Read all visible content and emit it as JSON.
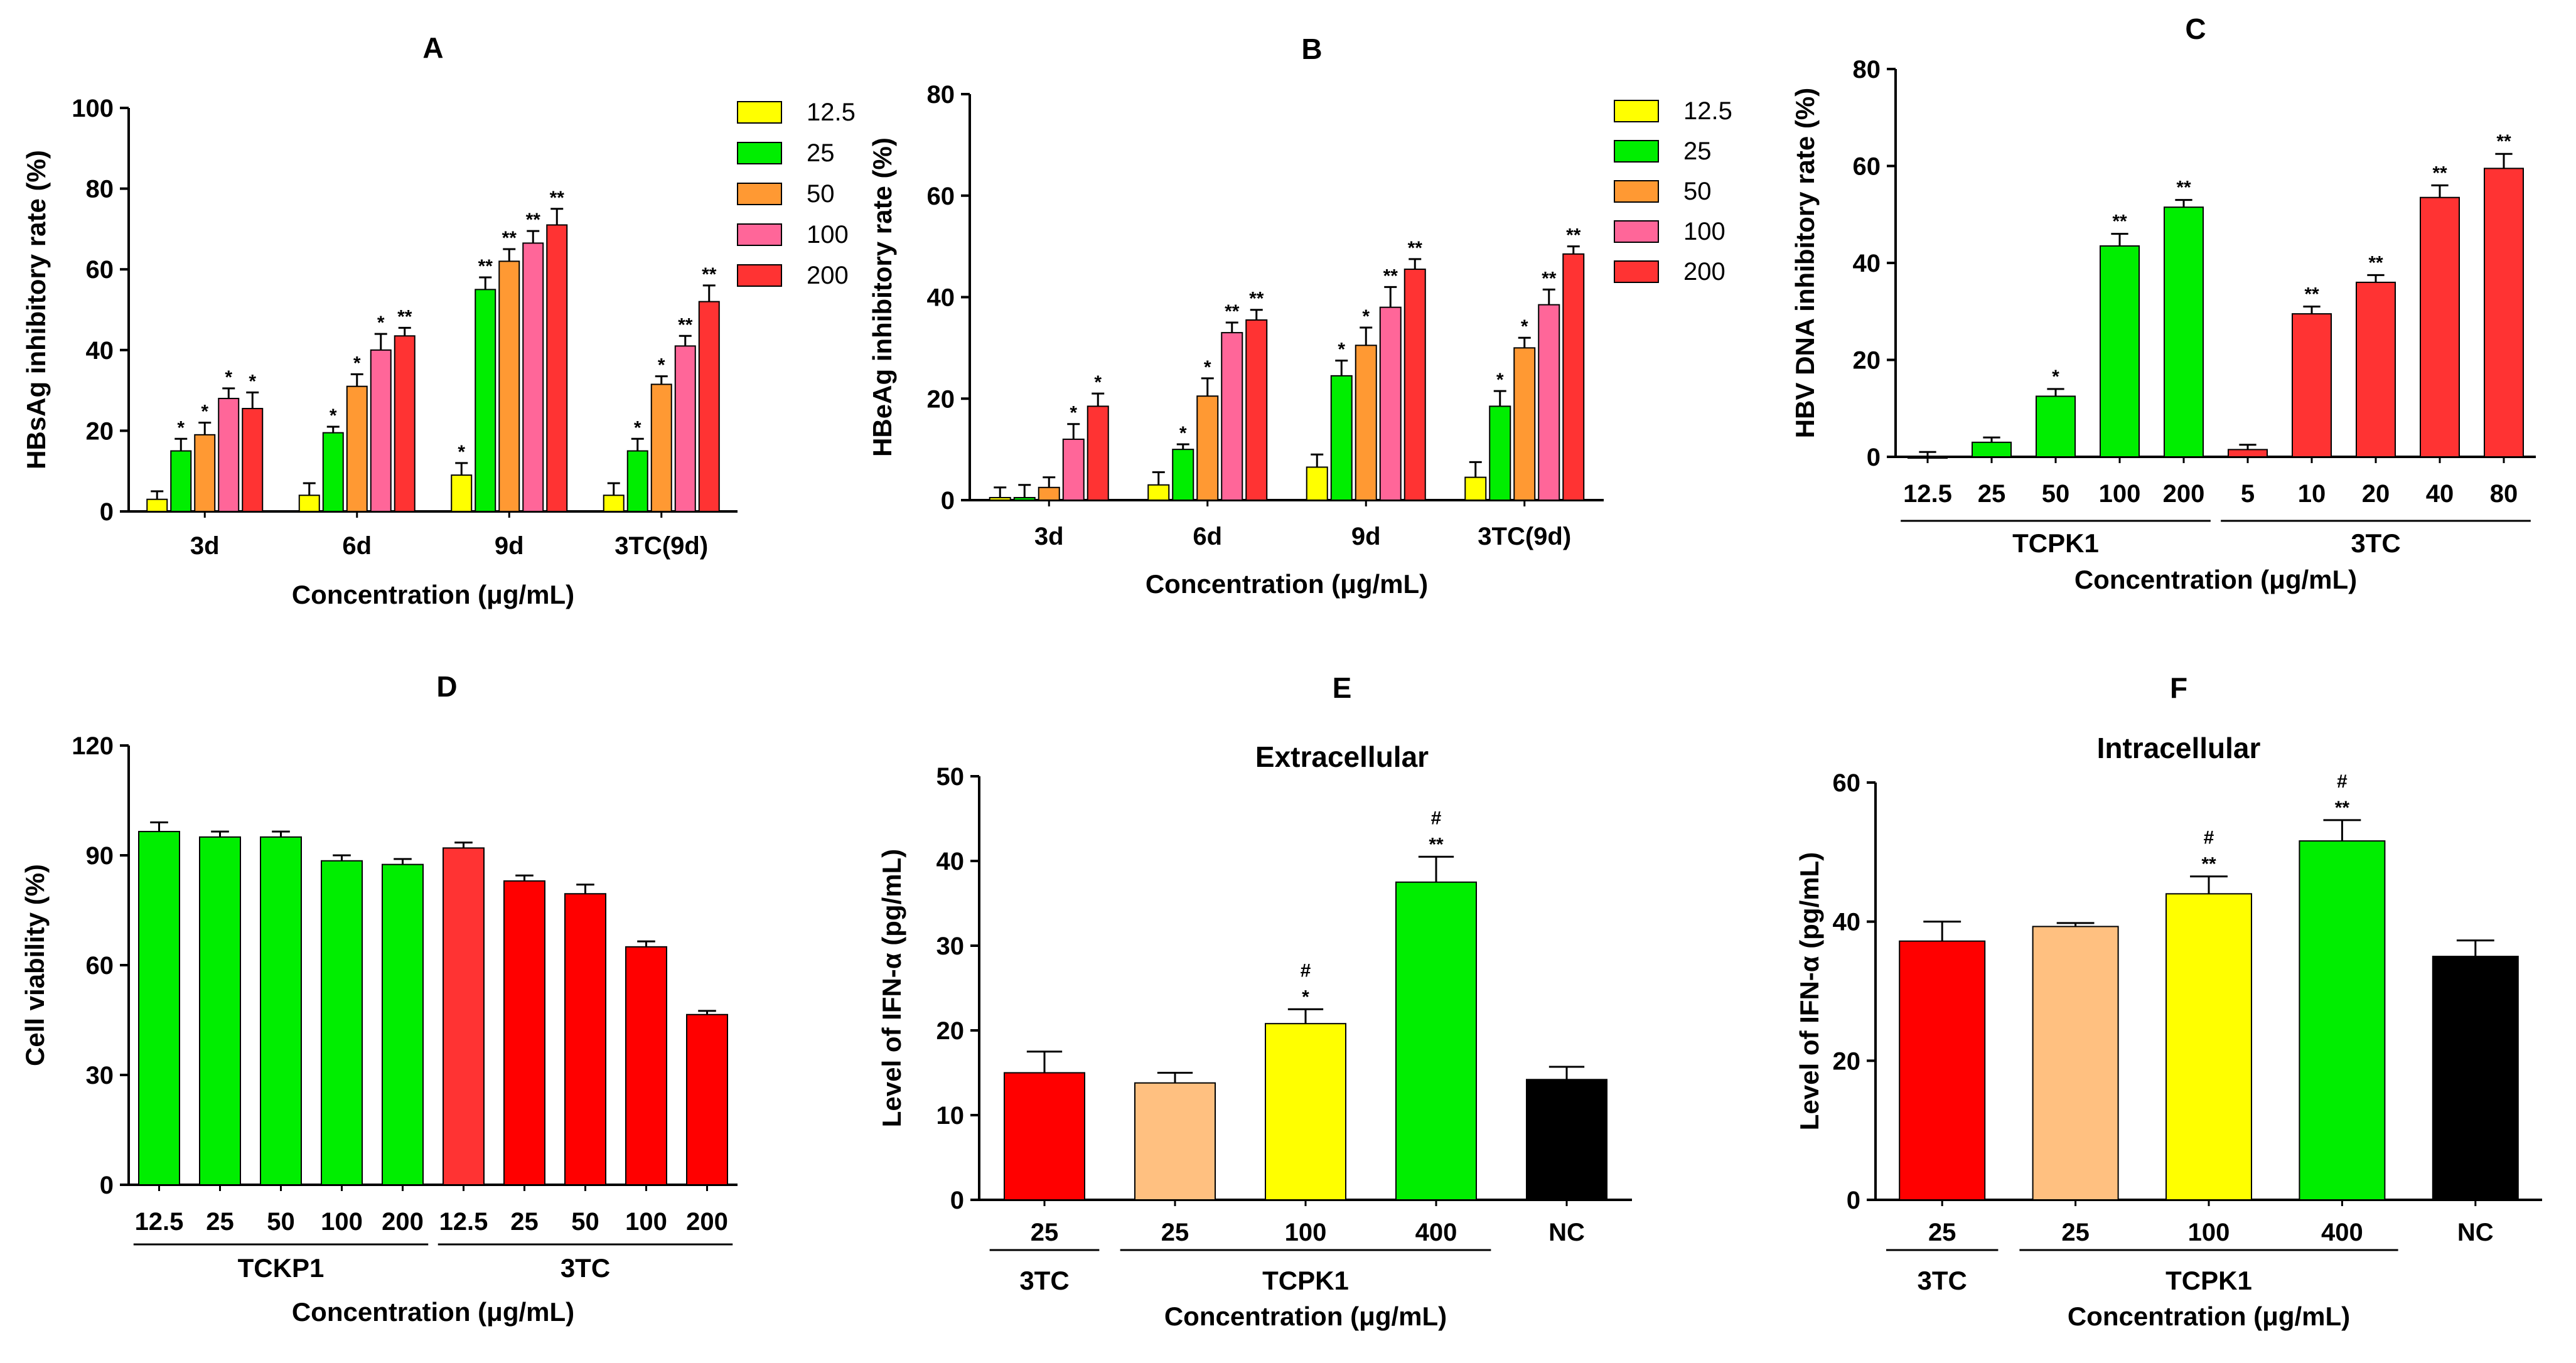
{
  "figure": {
    "panel_count": 6
  },
  "chart_data": [
    {
      "id": "A",
      "type": "bar",
      "title": "A",
      "xlabel": "Concentration (μg/mL)",
      "ylabel": "HBsAg inhibitory rate (%)",
      "ylim": [
        0,
        100
      ],
      "yticks": [
        0,
        20,
        40,
        60,
        80,
        100
      ],
      "categories": [
        "3d",
        "6d",
        "9d",
        "3TC(9d)"
      ],
      "legend": {
        "position": "top-right",
        "entries": [
          "12.5",
          "25",
          "50",
          "100",
          "200"
        ]
      },
      "series": [
        {
          "name": "12.5",
          "color": "#ffff00",
          "values": [
            3,
            4,
            9,
            4
          ],
          "errors": [
            2,
            3,
            3,
            3
          ],
          "sig": [
            "",
            "",
            "*",
            ""
          ]
        },
        {
          "name": "25",
          "color": "#00ee00",
          "values": [
            15,
            19.5,
            55,
            15
          ],
          "errors": [
            3,
            1.5,
            3,
            3
          ],
          "sig": [
            "*",
            "*",
            "**",
            "*"
          ]
        },
        {
          "name": "50",
          "color": "#ff9933",
          "values": [
            19,
            31,
            62,
            31.5
          ],
          "errors": [
            3,
            3,
            3,
            2
          ],
          "sig": [
            "*",
            "*",
            "**",
            "*"
          ]
        },
        {
          "name": "100",
          "color": "#ff6699",
          "values": [
            28,
            40,
            66.5,
            41
          ],
          "errors": [
            2.5,
            4,
            3,
            2.5
          ],
          "sig": [
            "*",
            "*",
            "**",
            "**"
          ]
        },
        {
          "name": "200",
          "color": "#ff3333",
          "values": [
            25.5,
            43.5,
            71,
            52
          ],
          "errors": [
            4,
            2,
            4,
            4
          ],
          "sig": [
            "*",
            "**",
            "**",
            "**"
          ]
        }
      ]
    },
    {
      "id": "B",
      "type": "bar",
      "title": "B",
      "xlabel": "Concentration (μg/mL)",
      "ylabel": "HBeAg inhibitory rate (%)",
      "ylim": [
        0,
        80
      ],
      "yticks": [
        0,
        20,
        40,
        60,
        80
      ],
      "categories": [
        "3d",
        "6d",
        "9d",
        "3TC(9d)"
      ],
      "legend": {
        "position": "top-right",
        "entries": [
          "12.5",
          "25",
          "50",
          "100",
          "200"
        ]
      },
      "series": [
        {
          "name": "12.5",
          "color": "#ffff00",
          "values": [
            0.5,
            3,
            6.5,
            4.5
          ],
          "errors": [
            2,
            2.5,
            2.5,
            3
          ],
          "sig": [
            "",
            "",
            "",
            ""
          ]
        },
        {
          "name": "25",
          "color": "#00ee00",
          "values": [
            0.5,
            10,
            24.5,
            18.5
          ],
          "errors": [
            2.5,
            1,
            3,
            3
          ],
          "sig": [
            "",
            "*",
            "*",
            "*"
          ]
        },
        {
          "name": "50",
          "color": "#ff9933",
          "values": [
            2.5,
            20.5,
            30.5,
            30
          ],
          "errors": [
            2,
            3.5,
            3.5,
            2
          ],
          "sig": [
            "",
            "*",
            "*",
            "*"
          ]
        },
        {
          "name": "100",
          "color": "#ff6699",
          "values": [
            12,
            33,
            38,
            38.5
          ],
          "errors": [
            3,
            2,
            4,
            3
          ],
          "sig": [
            "*",
            "**",
            "**",
            "**"
          ]
        },
        {
          "name": "200",
          "color": "#ff3333",
          "values": [
            18.5,
            35.5,
            45.5,
            48.5
          ],
          "errors": [
            2.5,
            2,
            2,
            1.5
          ],
          "sig": [
            "*",
            "**",
            "**",
            "**"
          ]
        }
      ]
    },
    {
      "id": "C",
      "type": "bar",
      "title": "C",
      "xlabel": "Concentration (μg/mL)",
      "ylabel": "HBV DNA inhibitory rate (%)",
      "ylim": [
        0,
        80
      ],
      "yticks": [
        0,
        20,
        40,
        60,
        80
      ],
      "categories": [
        "12.5",
        "25",
        "50",
        "100",
        "200",
        "5",
        "10",
        "20",
        "40",
        "80"
      ],
      "groups": [
        {
          "label": "TCPK1",
          "from": 0,
          "to": 4
        },
        {
          "label": "3TC",
          "from": 5,
          "to": 9
        }
      ],
      "values": [
        0,
        3,
        12.5,
        43.5,
        51.5,
        1.5,
        29.5,
        36,
        53.5,
        59.5
      ],
      "errors": [
        1,
        1,
        1.5,
        2.5,
        1.5,
        1,
        1.5,
        1.5,
        2.5,
        3
      ],
      "colors": [
        "#00ee00",
        "#00ee00",
        "#00ee00",
        "#00ee00",
        "#00ee00",
        "#ff3333",
        "#ff3333",
        "#ff3333",
        "#ff3333",
        "#ff3333"
      ],
      "sig": [
        "",
        "",
        "*",
        "**",
        "**",
        "",
        "**",
        "**",
        "**",
        "**"
      ]
    },
    {
      "id": "D",
      "type": "bar",
      "title": "D",
      "xlabel": "Concentration (μg/mL)",
      "ylabel": "Cell viability (%)",
      "ylim": [
        0,
        120
      ],
      "yticks": [
        0,
        30,
        60,
        90,
        120
      ],
      "categories": [
        "12.5",
        "25",
        "50",
        "100",
        "200",
        "12.5",
        "25",
        "50",
        "100",
        "200"
      ],
      "groups": [
        {
          "label": "TCKP1",
          "from": 0,
          "to": 4
        },
        {
          "label": "3TC",
          "from": 5,
          "to": 9
        }
      ],
      "values": [
        96.5,
        95,
        95,
        88.5,
        87.5,
        92,
        83,
        79.5,
        65,
        46.5
      ],
      "errors": [
        2.5,
        1.5,
        1.5,
        1.5,
        1.5,
        1.5,
        1.5,
        2.5,
        1.5,
        1
      ],
      "colors": [
        "#00ee00",
        "#00ee00",
        "#00ee00",
        "#00ee00",
        "#00ee00",
        "#ff3333",
        "#ff0000",
        "#ff0000",
        "#ff0000",
        "#ff0000"
      ],
      "sig": [
        "",
        "",
        "",
        "",
        "",
        "",
        "",
        "",
        "",
        ""
      ]
    },
    {
      "id": "E",
      "type": "bar",
      "title": "E",
      "subtitle": "Extracellular",
      "xlabel": "Concentration (μg/mL)",
      "ylabel": "Level of IFN-α  (pg/mL)",
      "ylim": [
        0,
        50
      ],
      "yticks": [
        0,
        10,
        20,
        30,
        40,
        50
      ],
      "categories": [
        "25",
        "25",
        "100",
        "400",
        "NC"
      ],
      "groups": [
        {
          "label": "3TC",
          "from": 0,
          "to": 0
        },
        {
          "label": "TCPK1",
          "from": 1,
          "to": 3
        }
      ],
      "values": [
        15,
        13.8,
        20.8,
        37.5,
        14.2
      ],
      "errors": [
        2.5,
        1.2,
        1.7,
        3,
        1.5
      ],
      "colors": [
        "#ff0000",
        "#ffc080",
        "#ffff00",
        "#00ee00",
        "#000000"
      ],
      "sig": [
        "",
        "",
        "*",
        "**",
        ""
      ],
      "sig2": [
        "",
        "",
        "#",
        "#",
        ""
      ]
    },
    {
      "id": "F",
      "type": "bar",
      "title": "F",
      "subtitle": "Intracellular",
      "xlabel": "Concentration (μg/mL)",
      "ylabel": "Level of IFN-α  (pg/mL)",
      "ylim": [
        0,
        60
      ],
      "yticks": [
        0,
        20,
        40,
        60
      ],
      "categories": [
        "25",
        "25",
        "100",
        "400",
        "NC"
      ],
      "groups": [
        {
          "label": "3TC",
          "from": 0,
          "to": 0
        },
        {
          "label": "TCPK1",
          "from": 1,
          "to": 3
        }
      ],
      "values": [
        37.2,
        39.3,
        44,
        51.6,
        35
      ],
      "errors": [
        2.8,
        0.5,
        2.5,
        3,
        2.3
      ],
      "colors": [
        "#ff0000",
        "#ffc080",
        "#ffff00",
        "#00ee00",
        "#000000"
      ],
      "sig": [
        "",
        "",
        "**",
        "**",
        ""
      ],
      "sig2": [
        "",
        "",
        "#",
        "#",
        ""
      ]
    }
  ]
}
